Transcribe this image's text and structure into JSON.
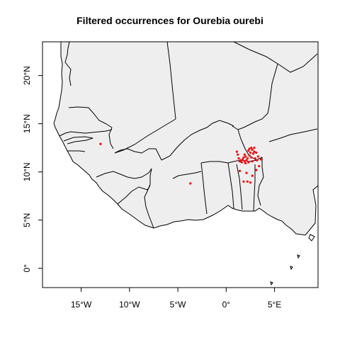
{
  "title": "Filtered occurrences for Ourebia ourebi",
  "colors": {
    "land": "#eeeeee",
    "border": "#000000",
    "frame": "#000000",
    "occurrence": "#ff0000"
  },
  "chart_data": {
    "type": "scatter",
    "title": "Filtered occurrences for Ourebia ourebi",
    "xlabel": "",
    "ylabel": "",
    "xlim": [
      -19,
      9.5
    ],
    "ylim": [
      -2,
      23.5
    ],
    "x_ticks": [
      {
        "value": -15,
        "label": "15°W"
      },
      {
        "value": -10,
        "label": "10°W"
      },
      {
        "value": -5,
        "label": "5°W"
      },
      {
        "value": 0,
        "label": "0°"
      },
      {
        "value": 5,
        "label": "5°E"
      }
    ],
    "y_ticks": [
      {
        "value": 0,
        "label": "0°"
      },
      {
        "value": 5,
        "label": "5°N"
      },
      {
        "value": 10,
        "label": "10°N"
      },
      {
        "value": 15,
        "label": "15°N"
      },
      {
        "value": 20,
        "label": "20°N"
      }
    ],
    "grid": false,
    "legend": "none",
    "series": [
      {
        "points": [
          [
            -13.0,
            12.9
          ],
          [
            -3.7,
            8.8
          ],
          [
            1.1,
            12.1
          ],
          [
            1.2,
            11.8
          ],
          [
            1.3,
            11.4
          ],
          [
            1.4,
            11.1
          ],
          [
            1.5,
            11.2
          ],
          [
            1.6,
            11.0
          ],
          [
            1.7,
            11.3
          ],
          [
            1.8,
            11.5
          ],
          [
            1.9,
            11.1
          ],
          [
            2.0,
            11.6
          ],
          [
            2.1,
            11.2
          ],
          [
            2.2,
            11.4
          ],
          [
            2.3,
            11.0
          ],
          [
            2.4,
            11.7
          ],
          [
            2.5,
            12.0
          ],
          [
            2.6,
            11.5
          ],
          [
            2.7,
            12.3
          ],
          [
            2.8,
            11.9
          ],
          [
            2.9,
            12.1
          ],
          [
            3.0,
            11.4
          ],
          [
            2.4,
            12.4
          ],
          [
            2.6,
            12.5
          ],
          [
            2.9,
            12.5
          ],
          [
            3.1,
            12.0
          ],
          [
            3.2,
            11.2
          ],
          [
            2.0,
            10.9
          ],
          [
            1.9,
            11.8
          ],
          [
            2.3,
            12.2
          ],
          [
            2.7,
            11.1
          ],
          [
            3.3,
            11.6
          ],
          [
            3.6,
            11.3
          ],
          [
            3.4,
            10.6
          ],
          [
            3.1,
            10.2
          ],
          [
            2.1,
            9.9
          ],
          [
            2.7,
            9.6
          ],
          [
            1.8,
            9.0
          ],
          [
            2.2,
            9.0
          ],
          [
            2.5,
            8.9
          ],
          [
            1.4,
            10.1
          ]
        ]
      }
    ]
  }
}
